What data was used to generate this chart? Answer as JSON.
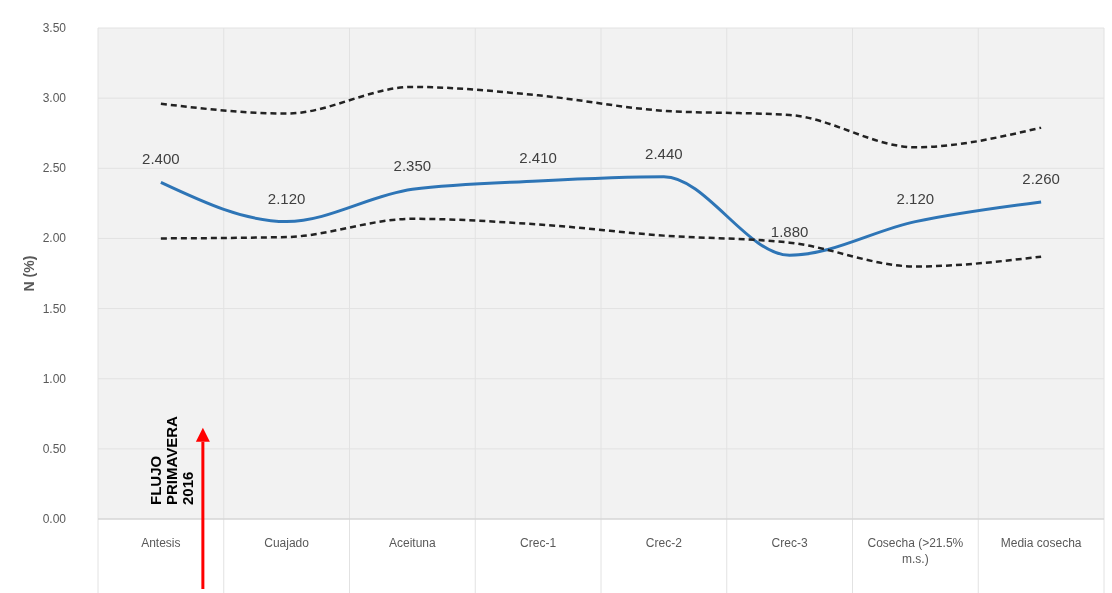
{
  "chart_data": {
    "type": "line",
    "ylabel": "N (%)",
    "categories": [
      "Antesis",
      "Cuajado",
      "Aceituna",
      "Crec-1",
      "Crec-2",
      "Crec-3",
      "Cosecha (>21.5% m.s.)",
      "Media cosecha"
    ],
    "series": [
      {
        "color": "#2e75b6",
        "values": [
          2.4,
          2.12,
          2.35,
          2.41,
          2.44,
          1.88,
          2.12,
          2.26
        ],
        "value_labels": [
          "2.400",
          "2.120",
          "2.350",
          "2.410",
          "2.440",
          "1.880",
          "2.120",
          "2.260"
        ],
        "line_style": "solid"
      },
      {
        "color": "#222222",
        "values": [
          2.96,
          2.89,
          3.08,
          3.02,
          2.91,
          2.88,
          2.65,
          2.79
        ],
        "line_style": "dashed"
      },
      {
        "color": "#222222",
        "values": [
          2.0,
          2.01,
          2.14,
          2.1,
          2.02,
          1.97,
          1.8,
          1.87
        ],
        "line_style": "dashed"
      }
    ],
    "ylim": [
      0,
      3.5
    ],
    "yticks": [
      {
        "value": 0,
        "label": "0.00"
      },
      {
        "value": 0.5,
        "label": "0.50"
      },
      {
        "value": 1,
        "label": "1.00"
      },
      {
        "value": 1.5,
        "label": "1.50"
      },
      {
        "value": 2,
        "label": "2.00"
      },
      {
        "value": 2.5,
        "label": "2.50"
      },
      {
        "value": 3,
        "label": "3.00"
      },
      {
        "value": 3.5,
        "label": "3.50"
      }
    ],
    "grid": true,
    "marker": "none",
    "annotations": [
      "FLUJO PRIMAVERA 2016"
    ]
  }
}
